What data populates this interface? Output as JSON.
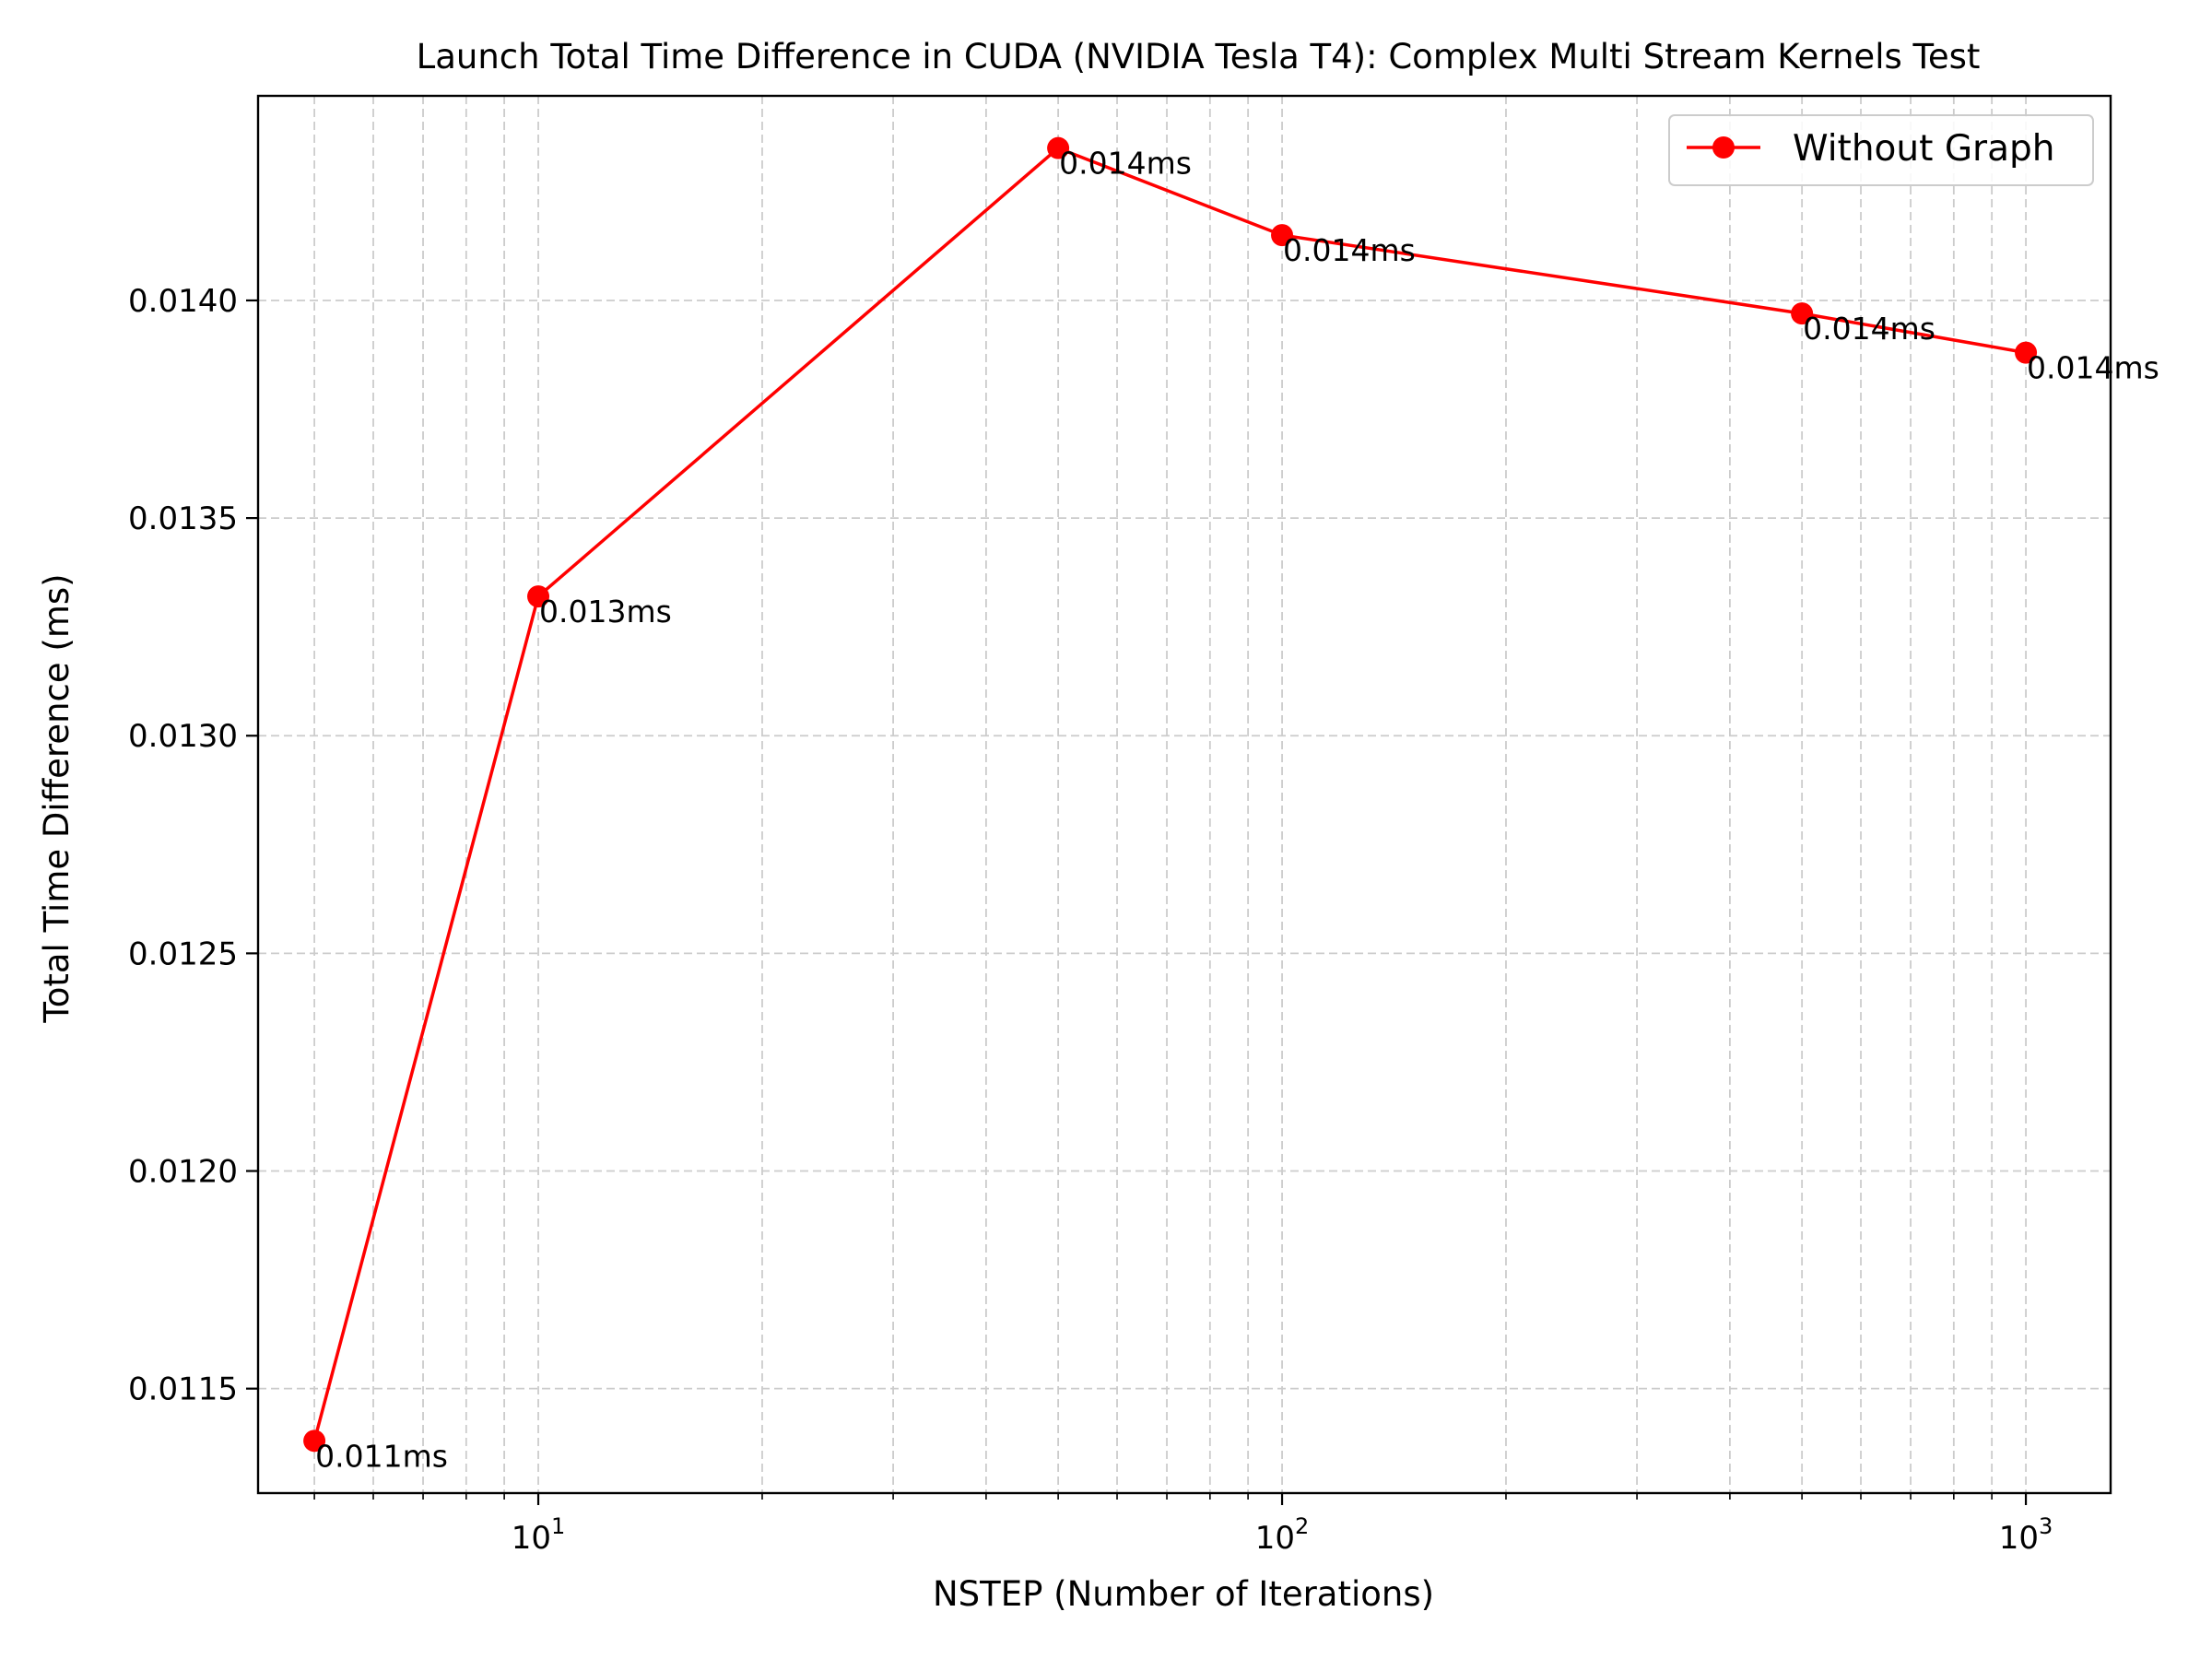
{
  "chart_data": {
    "type": "line",
    "title": "Launch Total Time Difference in CUDA (NVIDIA Tesla T4): Complex Multi Stream Kernels Test",
    "xlabel": "NSTEP (Number of Iterations)",
    "ylabel": "Total Time Difference (ms)",
    "x_scale": "log",
    "xlim": [
      4.2,
      1300
    ],
    "ylim": [
      0.01126,
      0.01447
    ],
    "x_ticks": [
      {
        "value": 10,
        "base": "10",
        "exp": "1"
      },
      {
        "value": 100,
        "base": "10",
        "exp": "2"
      },
      {
        "value": 1000,
        "base": "10",
        "exp": "3"
      }
    ],
    "y_ticks": [
      {
        "value": 0.0115,
        "label": "0.0115"
      },
      {
        "value": 0.012,
        "label": "0.0120"
      },
      {
        "value": 0.0125,
        "label": "0.0125"
      },
      {
        "value": 0.013,
        "label": "0.0130"
      },
      {
        "value": 0.0135,
        "label": "0.0135"
      },
      {
        "value": 0.014,
        "label": "0.0140"
      }
    ],
    "grid": true,
    "grid_style": "dashed",
    "legend_position": "top-right",
    "series": [
      {
        "name": "Without Graph",
        "color": "#ff0000",
        "marker": "circle",
        "x": [
          5,
          10,
          50,
          100,
          500,
          1000
        ],
        "y": [
          0.01138,
          0.01332,
          0.01435,
          0.01415,
          0.01397,
          0.01388
        ],
        "labels": [
          "0.011ms",
          "0.013ms",
          "0.014ms",
          "0.014ms",
          "0.014ms",
          "0.014ms"
        ]
      }
    ]
  }
}
